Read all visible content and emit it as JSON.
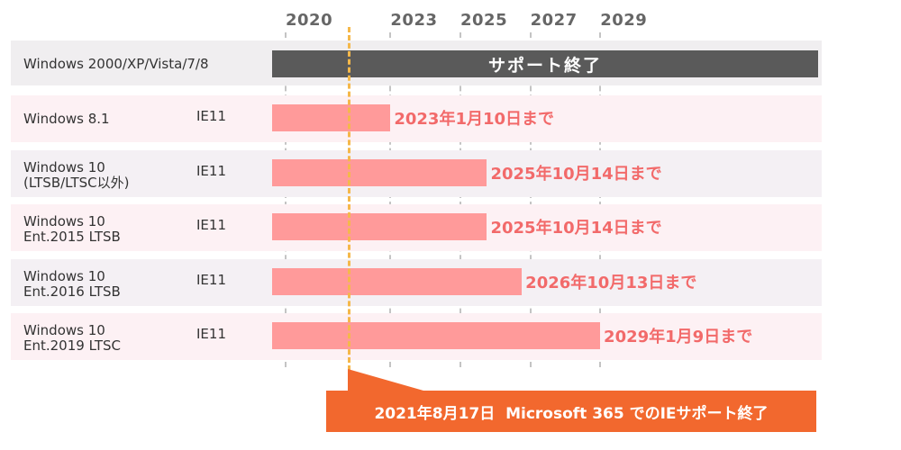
{
  "timeline": {
    "years": [
      "2020",
      "2023",
      "2025",
      "2027",
      "2029"
    ],
    "legacy_row": {
      "os": "Windows 2000/XP/Vista/7/8",
      "status": "サポート終了"
    },
    "rows": [
      {
        "os_lines": [
          "Windows 8.1"
        ],
        "browser": "IE11",
        "end_label": "2023年1月10日まで",
        "end_date": "2023-01-10"
      },
      {
        "os_lines": [
          "Windows 10",
          "(LTSB/LTSC以外)"
        ],
        "browser": "IE11",
        "end_label": "2025年10月14日まで",
        "end_date": "2025-10-14"
      },
      {
        "os_lines": [
          "Windows 10",
          "Ent.2015 LTSB"
        ],
        "browser": "IE11",
        "end_label": "2025年10月14日まで",
        "end_date": "2025-10-14"
      },
      {
        "os_lines": [
          "Windows 10",
          "Ent.2016 LTSB"
        ],
        "browser": "IE11",
        "end_label": "2026年10月13日まで",
        "end_date": "2026-10-13"
      },
      {
        "os_lines": [
          "Windows 10",
          "Ent.2019 LTSC"
        ],
        "browser": "IE11",
        "end_label": "2029年1月9日まで",
        "end_date": "2029-01-09"
      }
    ],
    "marker": {
      "date": "2021-08-17",
      "label": "2021年8月17日  Microsoft 365 でのIEサポート終了"
    },
    "colors": {
      "bar": "#ff9a9a",
      "legacy_bar": "#5a5a5a",
      "end_label": "#f26a6a",
      "marker_line": "#f5b84a",
      "callout": "#f2682e",
      "row_bg_light": "#fdf1f4",
      "row_bg_grey": "#f4f0f4"
    }
  }
}
